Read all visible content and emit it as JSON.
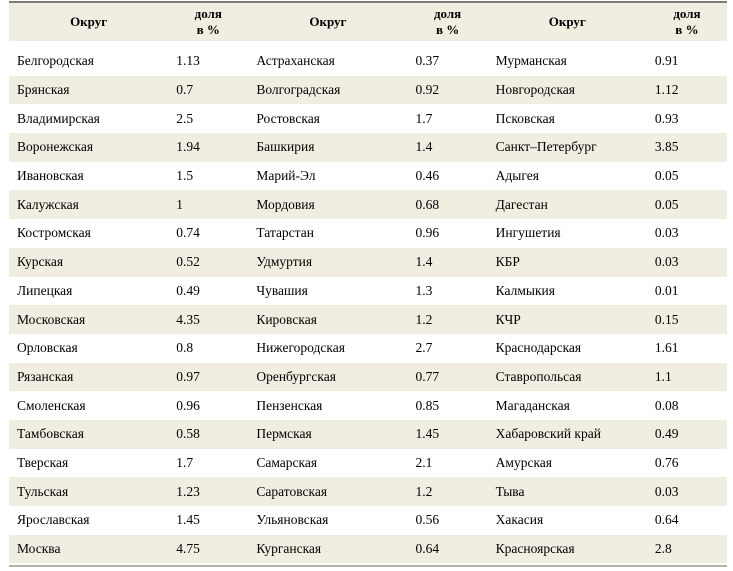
{
  "page": {
    "background": "#ffffff",
    "stripe_color": "#efeee1",
    "top_rule_color": "#7d7d76",
    "bottom_rule_color": "#b3b3aa"
  },
  "chart_data": {
    "type": "table",
    "title": "",
    "headers": [
      {
        "label": "Округ"
      },
      {
        "label": "доля\nв %"
      },
      {
        "label": "Округ"
      },
      {
        "label": "доля\nв %"
      },
      {
        "label": "Округ"
      },
      {
        "label": "доля\nв %"
      }
    ],
    "rows": [
      [
        "Белгородская",
        "1.13",
        "Астраханская",
        "0.37",
        "Мурманская",
        "0.91"
      ],
      [
        "Брянская",
        "0.7",
        "Волгоградская",
        "0.92",
        "Новгородская",
        "1.12"
      ],
      [
        "Владимирская",
        "2.5",
        "Ростовская",
        "1.7",
        "Псковская",
        "0.93"
      ],
      [
        "Воронежская",
        "1.94",
        "Башкирия",
        "1.4",
        "Санкт–Петербург",
        "3.85"
      ],
      [
        "Ивановская",
        "1.5",
        "Марий-Эл",
        "0.46",
        "Адыгея",
        "0.05"
      ],
      [
        "Калужская",
        "1",
        "Мордовия",
        "0.68",
        "Дагестан",
        "0.05"
      ],
      [
        "Костромская",
        "0.74",
        "Татарстан",
        "0.96",
        "Ингушетия",
        "0.03"
      ],
      [
        "Курская",
        "0.52",
        "Удмуртия",
        "1.4",
        "КБР",
        "0.03"
      ],
      [
        "Липецкая",
        "0.49",
        "Чувашия",
        "1.3",
        "Калмыкия",
        "0.01"
      ],
      [
        "Московская",
        "4.35",
        "Кировская",
        "1.2",
        "КЧР",
        "0.15"
      ],
      [
        "Орловская",
        "0.8",
        "Нижегородская",
        "2.7",
        "Краснодарская",
        "1.61"
      ],
      [
        "Рязанская",
        "0.97",
        "Оренбургская",
        "0.77",
        "Ставропольсая",
        "1.1"
      ],
      [
        "Смоленская",
        "0.96",
        "Пензенская",
        "0.85",
        "Магаданская",
        "0.08"
      ],
      [
        "Тамбовская",
        "0.58",
        "Пермская",
        "1.45",
        "Хабаровский край",
        "0.49"
      ],
      [
        "Тверская",
        "1.7",
        "Самарская",
        "2.1",
        "Амурская",
        "0.76"
      ],
      [
        "Тульская",
        "1.23",
        "Саратовская",
        "1.2",
        "Тыва",
        "0.03"
      ],
      [
        "Ярославская",
        "1.45",
        "Ульяновская",
        "0.56",
        "Хакасия",
        "0.64"
      ],
      [
        "Москва",
        "4.75",
        "Курганская",
        "0.64",
        "Красноярская",
        "2.8"
      ]
    ]
  }
}
